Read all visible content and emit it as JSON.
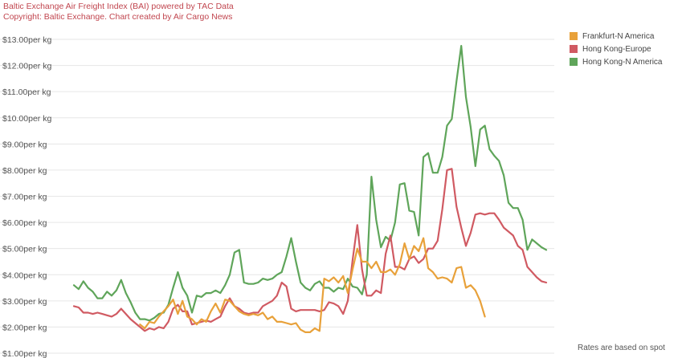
{
  "header": {
    "title": "Baltic Exchange Air Freight Index (BAI) powered by TAC Data",
    "copyright": "Copyright: Baltic Exchange. Chart created by Air Cargo News"
  },
  "note": "Rates are based on spot",
  "colors": {
    "frankfurt": "#e8a13a",
    "hk_europe": "#d05a62",
    "hk_namerica": "#5fa55a",
    "grid": "#e6e6e6",
    "header_text": "#c1464f"
  },
  "chart_data": {
    "type": "line",
    "title": "",
    "xlabel": "",
    "ylabel": "",
    "ylim": [
      1.0,
      13.0
    ],
    "y_ticks": [
      {
        "value": 1,
        "label": "$1.00per kg"
      },
      {
        "value": 2,
        "label": "$2.00per kg"
      },
      {
        "value": 3,
        "label": "$3.00per kg"
      },
      {
        "value": 4,
        "label": "$4.00per kg"
      },
      {
        "value": 5,
        "label": "$5.00per kg"
      },
      {
        "value": 6,
        "label": "$6.00per kg"
      },
      {
        "value": 7,
        "label": "$7.00per kg"
      },
      {
        "value": 8,
        "label": "$8.00per kg"
      },
      {
        "value": 9,
        "label": "$9.00per kg"
      },
      {
        "value": 10,
        "label": "$10.00per kg"
      },
      {
        "value": 11,
        "label": "$11.00per kg"
      },
      {
        "value": 12,
        "label": "$12.00per kg"
      },
      {
        "value": 13,
        "label": "$13.00per kg"
      }
    ],
    "grid": true,
    "legend_position": "top-right",
    "series": [
      {
        "name": "Frankfurt-N America",
        "start_index": 14,
        "values": [
          2.1,
          1.95,
          2.2,
          2.15,
          2.4,
          2.6,
          2.8,
          3.05,
          2.5,
          3.0,
          2.4,
          2.3,
          2.1,
          2.3,
          2.2,
          2.6,
          2.9,
          2.55,
          3.05,
          3.0,
          2.8,
          2.6,
          2.5,
          2.45,
          2.5,
          2.45,
          2.55,
          2.3,
          2.4,
          2.2,
          2.2,
          2.15,
          2.1,
          2.15,
          1.9,
          1.8,
          1.8,
          1.95,
          1.85,
          3.85,
          3.75,
          3.9,
          3.7,
          3.95,
          3.3,
          4.2,
          5.0,
          4.5,
          4.5,
          4.25,
          4.5,
          4.1,
          4.1,
          4.2,
          4.0,
          4.4,
          5.2,
          4.6,
          5.1,
          4.9,
          5.4,
          4.25,
          4.1,
          3.85,
          3.9,
          3.85,
          3.7,
          4.25,
          4.3,
          3.5,
          3.6,
          3.4,
          3.0,
          2.4
        ]
      },
      {
        "name": "Hong Kong-Europe",
        "start_index": 0,
        "values": [
          2.8,
          2.75,
          2.55,
          2.55,
          2.5,
          2.55,
          2.5,
          2.45,
          2.4,
          2.5,
          2.7,
          2.5,
          2.3,
          2.15,
          2.0,
          1.85,
          1.95,
          1.9,
          2.0,
          1.95,
          2.2,
          2.7,
          2.85,
          2.6,
          2.6,
          2.1,
          2.15,
          2.2,
          2.25,
          2.2,
          2.3,
          2.4,
          2.8,
          3.1,
          2.8,
          2.7,
          2.55,
          2.5,
          2.55,
          2.55,
          2.8,
          2.9,
          3.0,
          3.2,
          3.7,
          3.55,
          2.7,
          2.6,
          2.65,
          2.65,
          2.65,
          2.65,
          2.6,
          2.65,
          2.95,
          2.9,
          2.8,
          2.5,
          3.0,
          4.55,
          5.9,
          4.2,
          3.2,
          3.2,
          3.4,
          3.3,
          4.8,
          5.5,
          4.3,
          4.3,
          4.2,
          4.6,
          4.7,
          4.45,
          4.6,
          5.0,
          5.0,
          5.3,
          6.5,
          8.0,
          8.05,
          6.6,
          5.8,
          5.1,
          5.6,
          6.3,
          6.35,
          6.3,
          6.35,
          6.35,
          6.1,
          5.8,
          5.65,
          5.5,
          5.1,
          4.95,
          4.3,
          4.1,
          3.9,
          3.75,
          3.7
        ]
      },
      {
        "name": "Hong Kong-N America",
        "start_index": 0,
        "values": [
          3.6,
          3.45,
          3.75,
          3.5,
          3.35,
          3.1,
          3.1,
          3.35,
          3.2,
          3.4,
          3.8,
          3.3,
          2.95,
          2.55,
          2.3,
          2.3,
          2.25,
          2.35,
          2.5,
          2.55,
          2.85,
          3.5,
          4.1,
          3.5,
          3.2,
          2.55,
          3.2,
          3.15,
          3.3,
          3.3,
          3.4,
          3.3,
          3.6,
          4.0,
          4.85,
          4.95,
          3.7,
          3.65,
          3.65,
          3.7,
          3.85,
          3.8,
          3.85,
          4.0,
          4.1,
          4.7,
          5.4,
          4.5,
          3.7,
          3.5,
          3.4,
          3.65,
          3.75,
          3.5,
          3.5,
          3.35,
          3.5,
          3.45,
          3.85,
          3.55,
          3.5,
          3.25,
          4.0,
          7.75,
          6.1,
          5.05,
          5.45,
          5.3,
          6.0,
          7.45,
          7.5,
          6.45,
          6.4,
          5.5,
          8.5,
          8.65,
          7.9,
          7.9,
          8.5,
          9.7,
          9.95,
          11.4,
          12.75,
          10.8,
          9.65,
          8.15,
          9.55,
          9.7,
          8.8,
          8.55,
          8.35,
          7.8,
          6.75,
          6.55,
          6.55,
          6.1,
          4.95,
          5.35,
          5.2,
          5.05,
          4.95
        ]
      }
    ]
  }
}
